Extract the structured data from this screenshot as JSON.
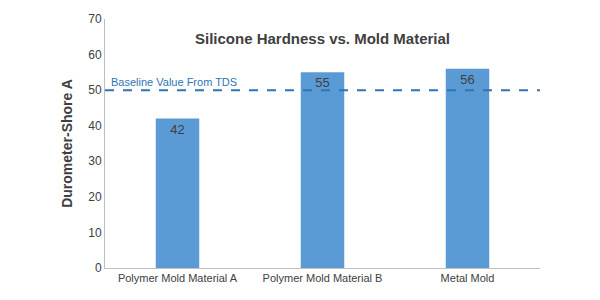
{
  "chart_data": {
    "type": "bar",
    "title": "Silicone Hardness vs. Mold Material",
    "y_label": "Durometer-Shore A",
    "categories": [
      "Polymer Mold Material A",
      "Polymer Mold Material B",
      "Metal Mold"
    ],
    "values": [
      42,
      55,
      56
    ],
    "color": "#5b9bd5",
    "baseline": {
      "value": 50,
      "label": "Baseline Value From TDS",
      "color": "#2e75b6",
      "line_style": "dash"
    },
    "ylim": [
      0,
      70
    ],
    "yticks": [
      0,
      10,
      20,
      30,
      40,
      50,
      60,
      70
    ],
    "grid": false,
    "data_labels": true
  }
}
